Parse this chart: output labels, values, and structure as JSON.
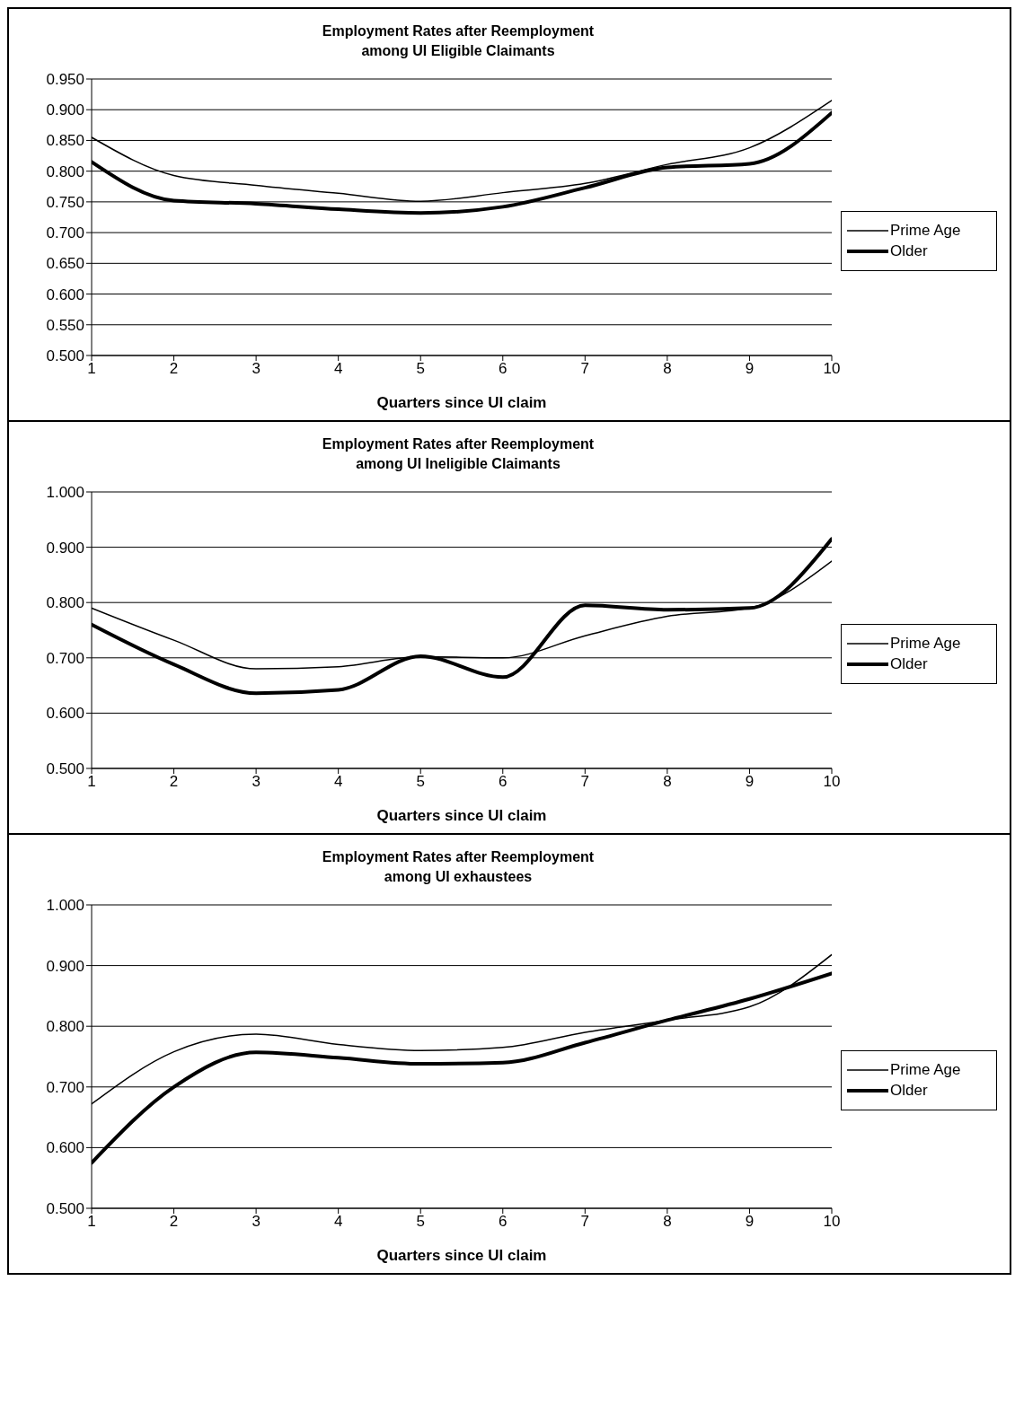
{
  "chart_data": [
    {
      "type": "line",
      "title": "Employment Rates after Reemployment\namong UI Eligible Claimants",
      "xlabel": "Quarters since UI claim",
      "x": [
        1,
        2,
        3,
        4,
        5,
        6,
        7,
        8,
        9,
        10
      ],
      "series": [
        {
          "name": "Prime Age",
          "color": "#000000",
          "values": [
            0.855,
            0.793,
            0.777,
            0.764,
            0.751,
            0.765,
            0.78,
            0.811,
            0.838,
            0.915
          ]
        },
        {
          "name": "Older",
          "color": "#000000",
          "values": [
            0.815,
            0.752,
            0.747,
            0.738,
            0.732,
            0.742,
            0.773,
            0.806,
            0.812,
            0.895
          ]
        }
      ],
      "xlim": [
        1,
        10
      ],
      "xticks": [
        1,
        2,
        3,
        4,
        5,
        6,
        7,
        8,
        9,
        10
      ],
      "ylim": [
        0.5,
        0.95
      ],
      "yticks": [
        {
          "value": 0.5,
          "label": "0.500"
        },
        {
          "value": 0.55,
          "label": "0.550"
        },
        {
          "value": 0.6,
          "label": "0.600"
        },
        {
          "value": 0.65,
          "label": "0.650"
        },
        {
          "value": 0.7,
          "label": "0.700"
        },
        {
          "value": 0.75,
          "label": "0.750"
        },
        {
          "value": 0.8,
          "label": "0.800"
        },
        {
          "value": 0.85,
          "label": "0.850"
        },
        {
          "value": 0.9,
          "label": "0.900"
        },
        {
          "value": 0.95,
          "label": "0.950"
        }
      ],
      "grid": "y",
      "legend": "right"
    },
    {
      "type": "line",
      "title": "Employment Rates after Reemployment\namong UI Ineligible Claimants",
      "xlabel": "Quarters since UI claim",
      "x": [
        1,
        2,
        3,
        4,
        5,
        6,
        7,
        8,
        9,
        10
      ],
      "series": [
        {
          "name": "Prime Age",
          "color": "#000000",
          "values": [
            0.79,
            0.732,
            0.68,
            0.684,
            0.702,
            0.7,
            0.74,
            0.775,
            0.79,
            0.875
          ]
        },
        {
          "name": "Older",
          "color": "#000000",
          "values": [
            0.76,
            0.688,
            0.636,
            0.642,
            0.703,
            0.665,
            0.795,
            0.787,
            0.79,
            0.915
          ]
        }
      ],
      "xlim": [
        1,
        10
      ],
      "xticks": [
        1,
        2,
        3,
        4,
        5,
        6,
        7,
        8,
        9,
        10
      ],
      "ylim": [
        0.5,
        1.0
      ],
      "yticks": [
        {
          "value": 0.5,
          "label": "0.500"
        },
        {
          "value": 0.6,
          "label": "0.600"
        },
        {
          "value": 0.7,
          "label": "0.700"
        },
        {
          "value": 0.8,
          "label": "0.800"
        },
        {
          "value": 0.9,
          "label": "0.900"
        },
        {
          "value": 1.0,
          "label": "1.000"
        }
      ],
      "grid": "y",
      "legend": "right"
    },
    {
      "type": "line",
      "title": "Employment Rates after Reemployment\namong UI exhaustees",
      "xlabel": "Quarters since UI claim",
      "x": [
        1,
        2,
        3,
        4,
        5,
        6,
        7,
        8,
        9,
        10
      ],
      "series": [
        {
          "name": "Prime Age",
          "color": "#000000",
          "values": [
            0.672,
            0.758,
            0.787,
            0.77,
            0.76,
            0.765,
            0.79,
            0.81,
            0.832,
            0.918
          ]
        },
        {
          "name": "Older",
          "color": "#000000",
          "values": [
            0.575,
            0.7,
            0.757,
            0.748,
            0.738,
            0.74,
            0.773,
            0.81,
            0.845,
            0.887
          ]
        }
      ],
      "xlim": [
        1,
        10
      ],
      "xticks": [
        1,
        2,
        3,
        4,
        5,
        6,
        7,
        8,
        9,
        10
      ],
      "ylim": [
        0.5,
        1.0
      ],
      "yticks": [
        {
          "value": 0.5,
          "label": "0.500"
        },
        {
          "value": 0.6,
          "label": "0.600"
        },
        {
          "value": 0.7,
          "label": "0.700"
        },
        {
          "value": 0.8,
          "label": "0.800"
        },
        {
          "value": 0.9,
          "label": "0.900"
        },
        {
          "value": 1.0,
          "label": "1.000"
        }
      ],
      "grid": "y",
      "legend": "right"
    }
  ]
}
